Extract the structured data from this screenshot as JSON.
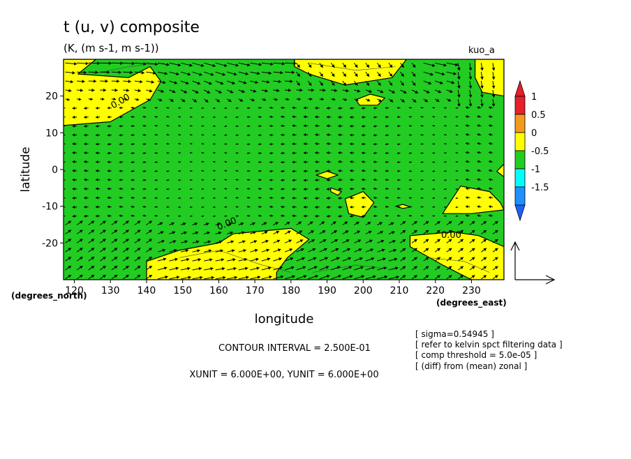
{
  "chart_data": {
    "type": "heatmap",
    "title": "t (u, v) composite",
    "subtitle": "(K, (m s-1, m s-1))",
    "run_label": "kuo_a",
    "xlabel": "longitude",
    "ylabel": "latitude",
    "x_units": "(degrees_east)",
    "y_units": "(degrees_north)",
    "xlim": [
      117,
      239
    ],
    "ylim": [
      -30,
      30
    ],
    "x_ticks": [
      120,
      130,
      140,
      150,
      160,
      170,
      180,
      190,
      200,
      210,
      220,
      230
    ],
    "y_ticks": [
      20,
      10,
      0,
      -10,
      -20
    ],
    "contour_interval_text": "CONTOUR INTERVAL = 2.500E-01",
    "unit_text": "XUNIT = 6.000E+00, YUNIT = 6.000E+00",
    "contour_labels": [
      "0.00",
      "0.00",
      "0.00"
    ],
    "notes": [
      "[ sigma=0.54945 ]",
      "[ refer to kelvin spct filtering data ]",
      "[ comp threshold = 5.0e-05 ]",
      "[ (diff) from (mean) zonal ]"
    ],
    "colorbar": {
      "labels": [
        "1",
        "0.5",
        "0",
        "-0.5",
        "-1",
        "-1.5"
      ],
      "colors": [
        "#e8202a",
        "#f39a1c",
        "#ffff00",
        "#22cc22",
        "#00ffff",
        "#1e90ff"
      ],
      "top_arrow_color": "#e8202a",
      "bottom_arrow_color": "#1e60ff"
    },
    "field_colors": {
      "positive": "#ffff00",
      "negative": "#22cc22"
    },
    "positive_regions": [
      {
        "name": "northwest",
        "points": [
          [
            117,
            30
          ],
          [
            126,
            30
          ],
          [
            121,
            26
          ],
          [
            135,
            25
          ],
          [
            141,
            28
          ],
          [
            144,
            24
          ],
          [
            141,
            19
          ],
          [
            130,
            13
          ],
          [
            117,
            12
          ]
        ]
      },
      {
        "name": "north-central",
        "points": [
          [
            181,
            30
          ],
          [
            212,
            30
          ],
          [
            208,
            25
          ],
          [
            195,
            23
          ],
          [
            185,
            26
          ],
          [
            181,
            28
          ]
        ]
      },
      {
        "name": "north-island",
        "points": [
          [
            198,
            19
          ],
          [
            202,
            20.5
          ],
          [
            206,
            19.5
          ],
          [
            204,
            17.5
          ],
          [
            199,
            17.5
          ]
        ]
      },
      {
        "name": "northeast",
        "points": [
          [
            231,
            30
          ],
          [
            239,
            30
          ],
          [
            239,
            20
          ],
          [
            233,
            21
          ],
          [
            231,
            25
          ]
        ]
      },
      {
        "name": "equator-east",
        "points": [
          [
            237,
            -0.5
          ],
          [
            239,
            1.5
          ],
          [
            239,
            -2
          ]
        ]
      },
      {
        "name": "equator-small",
        "points": [
          [
            187,
            -1.5
          ],
          [
            190,
            -0.5
          ],
          [
            193,
            -1.5
          ],
          [
            190,
            -2.5
          ]
        ]
      },
      {
        "name": "south-blob-a",
        "points": [
          [
            191,
            -5
          ],
          [
            194,
            -6
          ],
          [
            193,
            -7
          ],
          [
            191,
            -6
          ]
        ]
      },
      {
        "name": "south-blob-b",
        "points": [
          [
            195,
            -8
          ],
          [
            200,
            -6
          ],
          [
            203,
            -9
          ],
          [
            200,
            -13
          ],
          [
            196,
            -12
          ]
        ]
      },
      {
        "name": "south-small",
        "points": [
          [
            209,
            -10
          ],
          [
            211,
            -9.5
          ],
          [
            213,
            -10.2
          ],
          [
            211,
            -10.6
          ]
        ]
      },
      {
        "name": "south-east",
        "points": [
          [
            222,
            -12
          ],
          [
            227,
            -4.5
          ],
          [
            235,
            -6
          ],
          [
            238,
            -9
          ],
          [
            239,
            -11
          ],
          [
            230,
            -12
          ]
        ]
      },
      {
        "name": "southwest",
        "points": [
          [
            140,
            -30
          ],
          [
            140,
            -25
          ],
          [
            149,
            -22
          ],
          [
            160,
            -20
          ],
          [
            164,
            -17.5
          ],
          [
            180,
            -16
          ],
          [
            185,
            -19
          ],
          [
            179,
            -24
          ],
          [
            176,
            -28
          ],
          [
            176,
            -30
          ]
        ]
      },
      {
        "name": "southeast",
        "points": [
          [
            213,
            -18
          ],
          [
            225,
            -17
          ],
          [
            232,
            -18
          ],
          [
            239,
            -21
          ],
          [
            239,
            -30
          ],
          [
            230,
            -30
          ],
          [
            222,
            -26
          ],
          [
            213,
            -21
          ]
        ]
      }
    ],
    "streak_lines": [
      [
        [
          125,
          26
        ],
        [
          135,
          28
        ],
        [
          145,
          29
        ]
      ],
      [
        [
          185,
          29
        ],
        [
          198,
          27
        ],
        [
          209,
          28
        ]
      ],
      [
        [
          149,
          -24
        ],
        [
          160,
          -22
        ],
        [
          172,
          -26
        ],
        [
          180,
          -28
        ]
      ],
      [
        [
          186,
          -28
        ],
        [
          198,
          -26
        ],
        [
          207,
          -27
        ]
      ],
      [
        [
          218,
          -24
        ],
        [
          228,
          -25
        ],
        [
          235,
          -28
        ]
      ]
    ],
    "vector_field": {
      "type": "quiver",
      "note": "wind anomaly vectors (u, v) on a regular grid; direction and magnitude estimated",
      "x_start": 117.5,
      "x_step": 3.2,
      "y_start": 29,
      "y_step": -2.45
    },
    "reference_vector": {
      "u": 6.0,
      "v": 6.0
    }
  }
}
